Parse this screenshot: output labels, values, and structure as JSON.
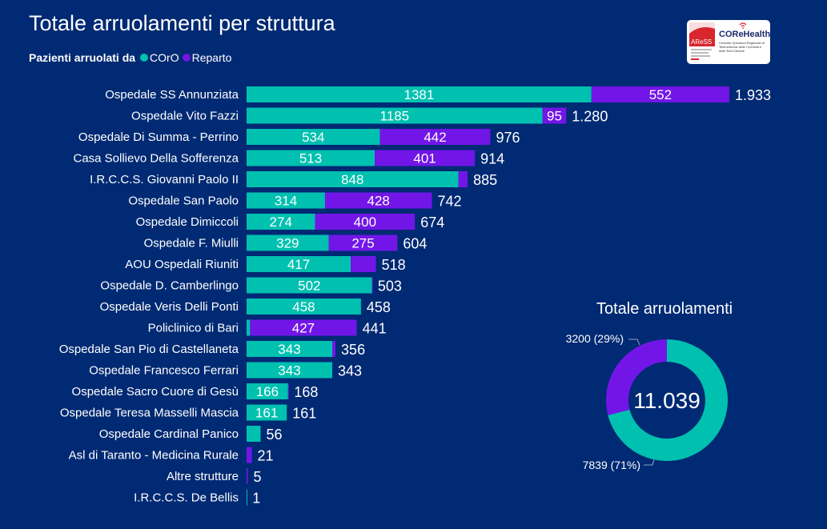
{
  "header": {
    "title": "Totale arruolamenti per struttura",
    "legend_label": "Pazienti arruolati da",
    "logo_left_text": "AReSS",
    "logo_brand": "COReHealth",
    "logo_subtitle": "Centrale Operativa Regionale di Telemedicina delle Cronicità e delle Reti Cliniche"
  },
  "colors": {
    "background": "#002A73",
    "coro": "#00C0B0",
    "reparto": "#7216E8",
    "text": "#FFFFFF"
  },
  "chart_data": [
    {
      "type": "bar",
      "orientation": "horizontal",
      "stacked": true,
      "title": "Totale arruolamenti per struttura",
      "legend_title": "Pazienti arruolati da",
      "legend_position": "top-left",
      "categories": [
        "Ospedale SS Annunziata",
        "Ospedale Vito Fazzi",
        "Ospedale Di Summa - Perrino",
        "Casa Sollievo Della Sofferenza",
        "I.R.C.C.S. Giovanni Paolo II",
        "Ospedale San Paolo",
        "Ospedale Dimiccoli",
        "Ospedale F. Miulli",
        "AOU Ospedali Riuniti",
        "Ospedale D. Camberlingo",
        "Ospedale Veris Delli Ponti",
        "Policlinico di Bari",
        "Ospedale San Pio di Castellaneta",
        "Ospedale Francesco Ferrari",
        "Ospedale Sacro Cuore di Gesù",
        "Ospedale Teresa Masselli Mascia",
        "Ospedale Cardinal Panico",
        "Asl di Taranto - Medicina Rurale",
        "Altre strutture",
        "I.R.C.C.S. De Bellis"
      ],
      "series": [
        {
          "name": "COrO",
          "values": [
            1381,
            1185,
            534,
            513,
            848,
            314,
            274,
            329,
            417,
            502,
            458,
            14,
            343,
            343,
            166,
            161,
            56,
            0,
            0,
            1
          ]
        },
        {
          "name": "Reparto",
          "values": [
            552,
            95,
            442,
            401,
            37,
            428,
            400,
            275,
            101,
            1,
            0,
            427,
            13,
            0,
            2,
            0,
            0,
            21,
            5,
            0
          ]
        }
      ],
      "segment_labels_visible": {
        "COrO": [
          true,
          true,
          true,
          true,
          true,
          true,
          true,
          true,
          true,
          true,
          true,
          false,
          true,
          true,
          true,
          true,
          false,
          false,
          false,
          false
        ],
        "Reparto": [
          true,
          true,
          true,
          true,
          false,
          true,
          true,
          true,
          false,
          false,
          false,
          true,
          false,
          false,
          false,
          false,
          false,
          false,
          false,
          false
        ]
      },
      "total_labels": [
        "1.933",
        "1.280",
        "976",
        "914",
        "885",
        "742",
        "674",
        "604",
        "518",
        "503",
        "458",
        "441",
        "356",
        "343",
        "168",
        "161",
        "56",
        "21",
        "5",
        "1"
      ],
      "xlim": [
        0,
        1933
      ],
      "grid": false
    },
    {
      "type": "pie",
      "donut": true,
      "title": "Totale arruolamenti",
      "center_label": "11.039",
      "slices": [
        {
          "name": "COrO",
          "value": 7839,
          "label": "7839 (71%)"
        },
        {
          "name": "Reparto",
          "value": 3200,
          "label": "3200 (29%)"
        }
      ]
    }
  ]
}
